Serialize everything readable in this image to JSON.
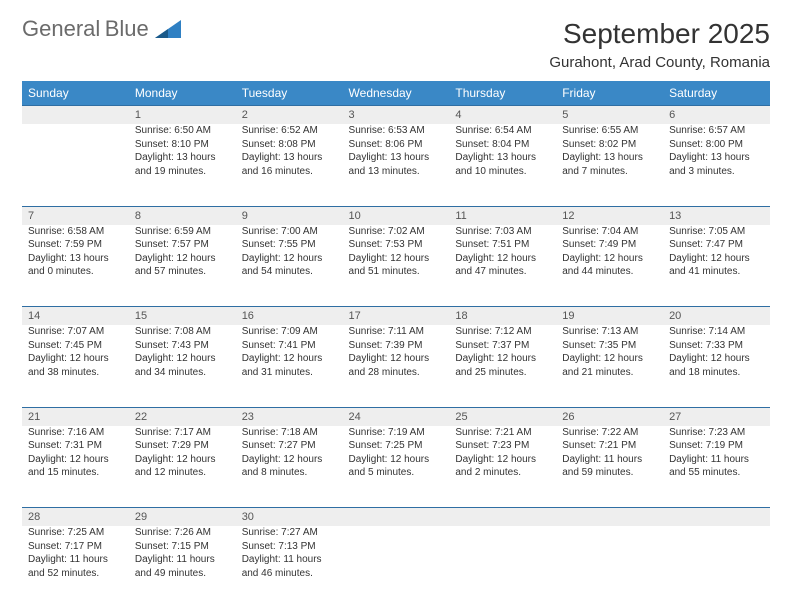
{
  "logo": {
    "word1": "General",
    "word2": "Blue"
  },
  "title": "September 2025",
  "subtitle": "Gurahont, Arad County, Romania",
  "colors": {
    "header_bg": "#3a88c6",
    "header_text": "#ffffff",
    "daynum_bg": "#eeeeee",
    "daynum_border": "#2f6ea3",
    "logo_gray": "#6b6b6b",
    "logo_blue": "#2f80c3",
    "text": "#333333"
  },
  "weekdays": [
    "Sunday",
    "Monday",
    "Tuesday",
    "Wednesday",
    "Thursday",
    "Friday",
    "Saturday"
  ],
  "weeks": [
    {
      "nums": [
        "",
        "1",
        "2",
        "3",
        "4",
        "5",
        "6"
      ],
      "cells": [
        null,
        {
          "sunrise": "6:50 AM",
          "sunset": "8:10 PM",
          "daylight": "13 hours and 19 minutes."
        },
        {
          "sunrise": "6:52 AM",
          "sunset": "8:08 PM",
          "daylight": "13 hours and 16 minutes."
        },
        {
          "sunrise": "6:53 AM",
          "sunset": "8:06 PM",
          "daylight": "13 hours and 13 minutes."
        },
        {
          "sunrise": "6:54 AM",
          "sunset": "8:04 PM",
          "daylight": "13 hours and 10 minutes."
        },
        {
          "sunrise": "6:55 AM",
          "sunset": "8:02 PM",
          "daylight": "13 hours and 7 minutes."
        },
        {
          "sunrise": "6:57 AM",
          "sunset": "8:00 PM",
          "daylight": "13 hours and 3 minutes."
        }
      ]
    },
    {
      "nums": [
        "7",
        "8",
        "9",
        "10",
        "11",
        "12",
        "13"
      ],
      "cells": [
        {
          "sunrise": "6:58 AM",
          "sunset": "7:59 PM",
          "daylight": "13 hours and 0 minutes."
        },
        {
          "sunrise": "6:59 AM",
          "sunset": "7:57 PM",
          "daylight": "12 hours and 57 minutes."
        },
        {
          "sunrise": "7:00 AM",
          "sunset": "7:55 PM",
          "daylight": "12 hours and 54 minutes."
        },
        {
          "sunrise": "7:02 AM",
          "sunset": "7:53 PM",
          "daylight": "12 hours and 51 minutes."
        },
        {
          "sunrise": "7:03 AM",
          "sunset": "7:51 PM",
          "daylight": "12 hours and 47 minutes."
        },
        {
          "sunrise": "7:04 AM",
          "sunset": "7:49 PM",
          "daylight": "12 hours and 44 minutes."
        },
        {
          "sunrise": "7:05 AM",
          "sunset": "7:47 PM",
          "daylight": "12 hours and 41 minutes."
        }
      ]
    },
    {
      "nums": [
        "14",
        "15",
        "16",
        "17",
        "18",
        "19",
        "20"
      ],
      "cells": [
        {
          "sunrise": "7:07 AM",
          "sunset": "7:45 PM",
          "daylight": "12 hours and 38 minutes."
        },
        {
          "sunrise": "7:08 AM",
          "sunset": "7:43 PM",
          "daylight": "12 hours and 34 minutes."
        },
        {
          "sunrise": "7:09 AM",
          "sunset": "7:41 PM",
          "daylight": "12 hours and 31 minutes."
        },
        {
          "sunrise": "7:11 AM",
          "sunset": "7:39 PM",
          "daylight": "12 hours and 28 minutes."
        },
        {
          "sunrise": "7:12 AM",
          "sunset": "7:37 PM",
          "daylight": "12 hours and 25 minutes."
        },
        {
          "sunrise": "7:13 AM",
          "sunset": "7:35 PM",
          "daylight": "12 hours and 21 minutes."
        },
        {
          "sunrise": "7:14 AM",
          "sunset": "7:33 PM",
          "daylight": "12 hours and 18 minutes."
        }
      ]
    },
    {
      "nums": [
        "21",
        "22",
        "23",
        "24",
        "25",
        "26",
        "27"
      ],
      "cells": [
        {
          "sunrise": "7:16 AM",
          "sunset": "7:31 PM",
          "daylight": "12 hours and 15 minutes."
        },
        {
          "sunrise": "7:17 AM",
          "sunset": "7:29 PM",
          "daylight": "12 hours and 12 minutes."
        },
        {
          "sunrise": "7:18 AM",
          "sunset": "7:27 PM",
          "daylight": "12 hours and 8 minutes."
        },
        {
          "sunrise": "7:19 AM",
          "sunset": "7:25 PM",
          "daylight": "12 hours and 5 minutes."
        },
        {
          "sunrise": "7:21 AM",
          "sunset": "7:23 PM",
          "daylight": "12 hours and 2 minutes."
        },
        {
          "sunrise": "7:22 AM",
          "sunset": "7:21 PM",
          "daylight": "11 hours and 59 minutes."
        },
        {
          "sunrise": "7:23 AM",
          "sunset": "7:19 PM",
          "daylight": "11 hours and 55 minutes."
        }
      ]
    },
    {
      "nums": [
        "28",
        "29",
        "30",
        "",
        "",
        "",
        ""
      ],
      "cells": [
        {
          "sunrise": "7:25 AM",
          "sunset": "7:17 PM",
          "daylight": "11 hours and 52 minutes."
        },
        {
          "sunrise": "7:26 AM",
          "sunset": "7:15 PM",
          "daylight": "11 hours and 49 minutes."
        },
        {
          "sunrise": "7:27 AM",
          "sunset": "7:13 PM",
          "daylight": "11 hours and 46 minutes."
        },
        null,
        null,
        null,
        null
      ]
    }
  ],
  "labels": {
    "sunrise": "Sunrise:",
    "sunset": "Sunset:",
    "daylight": "Daylight:"
  }
}
